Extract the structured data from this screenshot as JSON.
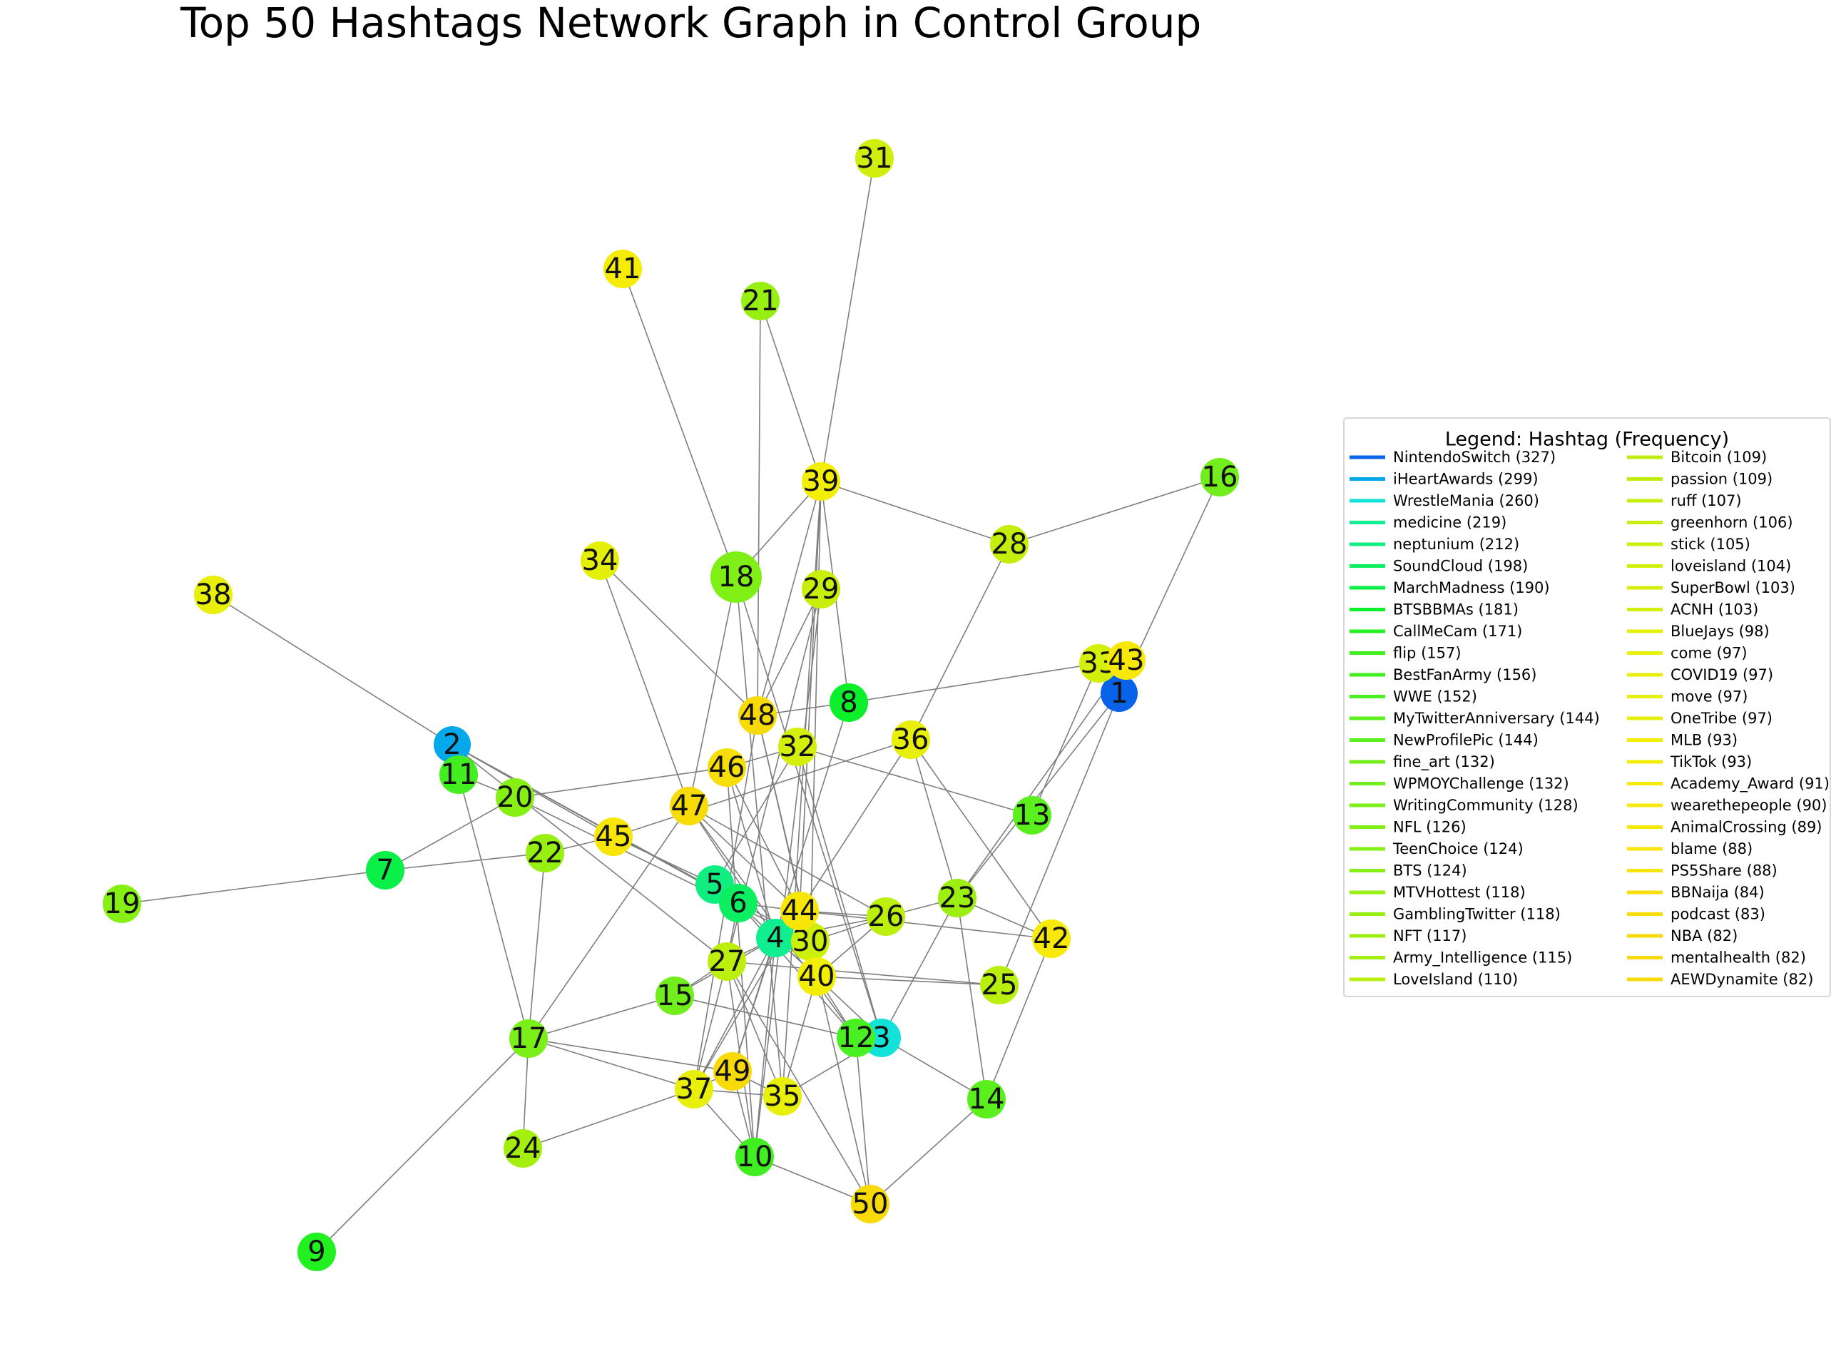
{
  "title": "Top 50 Hashtags Network Graph in Control Group",
  "legend": {
    "title": "Legend: Hashtag (Frequency)",
    "entries": [
      {
        "label": "NintendoSwitch (327)",
        "color": "#0863e8"
      },
      {
        "label": "iHeartAwards (299)",
        "color": "#06a8ec"
      },
      {
        "label": "WrestleMania (260)",
        "color": "#12e2d8"
      },
      {
        "label": "medicine (219)",
        "color": "#10ee90"
      },
      {
        "label": "neptunium (212)",
        "color": "#10ee82"
      },
      {
        "label": "SoundCloud (198)",
        "color": "#0bef60"
      },
      {
        "label": "MarchMadness (190)",
        "color": "#0bf048"
      },
      {
        "label": "BTSBBMAs (181)",
        "color": "#0cf02c"
      },
      {
        "label": "CallMeCam (171)",
        "color": "#22f020"
      },
      {
        "label": "flip (157)",
        "color": "#40ee22"
      },
      {
        "label": "BestFanArmy (156)",
        "color": "#42ee20"
      },
      {
        "label": "WWE (152)",
        "color": "#4af022"
      },
      {
        "label": "MyTwitterAnniversary (144)",
        "color": "#5cef1e"
      },
      {
        "label": "NewProfilePic (144)",
        "color": "#5cef1e"
      },
      {
        "label": "fine_art (132)",
        "color": "#72ee1c"
      },
      {
        "label": "WPMOYChallenge (132)",
        "color": "#72ee1c"
      },
      {
        "label": "WritingCommunity (128)",
        "color": "#7aef18"
      },
      {
        "label": "NFL (126)",
        "color": "#80ef16"
      },
      {
        "label": "TeenChoice (124)",
        "color": "#86ef14"
      },
      {
        "label": "BTS (124)",
        "color": "#86ef14"
      },
      {
        "label": "MTVHottest (118)",
        "color": "#98ef12"
      },
      {
        "label": "GamblingTwitter (118)",
        "color": "#98ef12"
      },
      {
        "label": "NFT (117)",
        "color": "#9cef10"
      },
      {
        "label": "Army_Intelligence (115)",
        "color": "#a4ef10"
      },
      {
        "label": "LoveIsland (110)",
        "color": "#b8ef0e"
      },
      {
        "label": "Bitcoin (109)",
        "color": "#bcef0e"
      },
      {
        "label": "passion (109)",
        "color": "#bcef0e"
      },
      {
        "label": "ruff (107)",
        "color": "#c4ef0e"
      },
      {
        "label": "greenhorn (106)",
        "color": "#c8ef0c"
      },
      {
        "label": "stick (105)",
        "color": "#ccef0c"
      },
      {
        "label": "loveisland (104)",
        "color": "#d0ef0c"
      },
      {
        "label": "SuperBowl (103)",
        "color": "#d4ef0c"
      },
      {
        "label": "ACNH (103)",
        "color": "#d4ef0c"
      },
      {
        "label": "BlueJays (98)",
        "color": "#e4ef0a"
      },
      {
        "label": "come (97)",
        "color": "#e8ef0a"
      },
      {
        "label": "COVID19 (97)",
        "color": "#e8ef0a"
      },
      {
        "label": "move (97)",
        "color": "#e8ef0a"
      },
      {
        "label": "OneTribe (97)",
        "color": "#e8ef0a"
      },
      {
        "label": "MLB (93)",
        "color": "#f2ee08"
      },
      {
        "label": "TikTok (93)",
        "color": "#f2ee08"
      },
      {
        "label": "Academy_Award (91)",
        "color": "#f6ec08"
      },
      {
        "label": "wearethepeople (90)",
        "color": "#f8ea08"
      },
      {
        "label": "AnimalCrossing (89)",
        "color": "#f8e808"
      },
      {
        "label": "blame (88)",
        "color": "#f8e608"
      },
      {
        "label": "PS5Share (88)",
        "color": "#f8e608"
      },
      {
        "label": "BBNaija (84)",
        "color": "#f8de08"
      },
      {
        "label": "podcast (83)",
        "color": "#f8dc08"
      },
      {
        "label": "NBA (82)",
        "color": "#f8da08"
      },
      {
        "label": "mentalhealth (82)",
        "color": "#f8da08"
      },
      {
        "label": "AEWDynamite (82)",
        "color": "#f8da08"
      }
    ]
  },
  "nodes": [
    {
      "id": 1,
      "label": "1",
      "color": "#0863e8"
    },
    {
      "id": 2,
      "label": "2",
      "color": "#06a8ec"
    },
    {
      "id": 3,
      "label": "3",
      "color": "#12e2d8"
    },
    {
      "id": 4,
      "label": "4",
      "color": "#10ee90"
    },
    {
      "id": 5,
      "label": "5",
      "color": "#10ee82"
    },
    {
      "id": 6,
      "label": "6",
      "color": "#0bef60"
    },
    {
      "id": 7,
      "label": "7",
      "color": "#0bf048"
    },
    {
      "id": 8,
      "label": "8",
      "color": "#0cf02c"
    },
    {
      "id": 9,
      "label": "9",
      "color": "#22f020"
    },
    {
      "id": 10,
      "label": "10",
      "color": "#40ee22"
    },
    {
      "id": 11,
      "label": "11",
      "color": "#42ee20"
    },
    {
      "id": 12,
      "label": "12",
      "color": "#4af022"
    },
    {
      "id": 13,
      "label": "13",
      "color": "#5cef1e"
    },
    {
      "id": 14,
      "label": "14",
      "color": "#5cef1e"
    },
    {
      "id": 15,
      "label": "15",
      "color": "#72ee1c"
    },
    {
      "id": 16,
      "label": "16",
      "color": "#72ee1c"
    },
    {
      "id": 17,
      "label": "17",
      "color": "#7aef18"
    },
    {
      "id": 18,
      "label": "18",
      "color": "#80ef16"
    },
    {
      "id": 19,
      "label": "19",
      "color": "#86ef14"
    },
    {
      "id": 20,
      "label": "20",
      "color": "#86ef14"
    },
    {
      "id": 21,
      "label": "21",
      "color": "#98ef12"
    },
    {
      "id": 22,
      "label": "22",
      "color": "#98ef12"
    },
    {
      "id": 23,
      "label": "23",
      "color": "#9cef10"
    },
    {
      "id": 24,
      "label": "24",
      "color": "#a4ef10"
    },
    {
      "id": 25,
      "label": "25",
      "color": "#b8ef0e"
    },
    {
      "id": 26,
      "label": "26",
      "color": "#bcef0e"
    },
    {
      "id": 27,
      "label": "27",
      "color": "#bcef0e"
    },
    {
      "id": 28,
      "label": "28",
      "color": "#c4ef0e"
    },
    {
      "id": 29,
      "label": "29",
      "color": "#c8ef0c"
    },
    {
      "id": 30,
      "label": "30",
      "color": "#ccef0c"
    },
    {
      "id": 31,
      "label": "31",
      "color": "#d0ef0c"
    },
    {
      "id": 32,
      "label": "32",
      "color": "#d4ef0c"
    },
    {
      "id": 33,
      "label": "33",
      "color": "#d4ef0c"
    },
    {
      "id": 34,
      "label": "34",
      "color": "#e4ef0a"
    },
    {
      "id": 35,
      "label": "35",
      "color": "#e8ef0a"
    },
    {
      "id": 36,
      "label": "36",
      "color": "#e8ef0a"
    },
    {
      "id": 37,
      "label": "37",
      "color": "#e8ef0a"
    },
    {
      "id": 38,
      "label": "38",
      "color": "#e8ef0a"
    },
    {
      "id": 39,
      "label": "39",
      "color": "#f2ee08"
    },
    {
      "id": 40,
      "label": "40",
      "color": "#f2ee08"
    },
    {
      "id": 41,
      "label": "41",
      "color": "#f6ec08"
    },
    {
      "id": 42,
      "label": "42",
      "color": "#f8ea08"
    },
    {
      "id": 43,
      "label": "43",
      "color": "#f8e808"
    },
    {
      "id": 44,
      "label": "44",
      "color": "#f8e608"
    },
    {
      "id": 45,
      "label": "45",
      "color": "#f8e608"
    },
    {
      "id": 46,
      "label": "46",
      "color": "#f8de08"
    },
    {
      "id": 47,
      "label": "47",
      "color": "#f8dc08"
    },
    {
      "id": 48,
      "label": "48",
      "color": "#f8da08"
    },
    {
      "id": 49,
      "label": "49",
      "color": "#f8da08"
    },
    {
      "id": 50,
      "label": "50",
      "color": "#f8da08"
    }
  ],
  "edges": [
    [
      2,
      38
    ],
    [
      2,
      45
    ],
    [
      2,
      27
    ],
    [
      2,
      6
    ],
    [
      2,
      30
    ],
    [
      11,
      17
    ],
    [
      11,
      20
    ],
    [
      7,
      19
    ],
    [
      7,
      20
    ],
    [
      7,
      22
    ],
    [
      20,
      46
    ],
    [
      20,
      30
    ],
    [
      22,
      17
    ],
    [
      22,
      45
    ],
    [
      17,
      9
    ],
    [
      17,
      24
    ],
    [
      17,
      15
    ],
    [
      17,
      37
    ],
    [
      17,
      49
    ],
    [
      17,
      47
    ],
    [
      24,
      37
    ],
    [
      45,
      36
    ],
    [
      45,
      5
    ],
    [
      18,
      41
    ],
    [
      18,
      39
    ],
    [
      18,
      47
    ],
    [
      18,
      35
    ],
    [
      18,
      3
    ],
    [
      21,
      39
    ],
    [
      21,
      48
    ],
    [
      31,
      39
    ],
    [
      39,
      28
    ],
    [
      39,
      48
    ],
    [
      39,
      44
    ],
    [
      39,
      35
    ],
    [
      39,
      8
    ],
    [
      39,
      30
    ],
    [
      29,
      48
    ],
    [
      29,
      27
    ],
    [
      29,
      10
    ],
    [
      34,
      48
    ],
    [
      34,
      47
    ],
    [
      48,
      8
    ],
    [
      48,
      30
    ],
    [
      48,
      37
    ],
    [
      48,
      50
    ],
    [
      8,
      33
    ],
    [
      8,
      49
    ],
    [
      33,
      1
    ],
    [
      33,
      13
    ],
    [
      43,
      23
    ],
    [
      16,
      28
    ],
    [
      16,
      1
    ],
    [
      28,
      36
    ],
    [
      1,
      23
    ],
    [
      1,
      25
    ],
    [
      36,
      42
    ],
    [
      36,
      23
    ],
    [
      36,
      44
    ],
    [
      46,
      32
    ],
    [
      46,
      44
    ],
    [
      46,
      4
    ],
    [
      46,
      10
    ],
    [
      32,
      13
    ],
    [
      32,
      5
    ],
    [
      32,
      3
    ],
    [
      47,
      4
    ],
    [
      47,
      44
    ],
    [
      47,
      12
    ],
    [
      47,
      26
    ],
    [
      5,
      6
    ],
    [
      6,
      44
    ],
    [
      6,
      27
    ],
    [
      6,
      12
    ],
    [
      6,
      3
    ],
    [
      44,
      26
    ],
    [
      44,
      42
    ],
    [
      44,
      37
    ],
    [
      26,
      4
    ],
    [
      26,
      23
    ],
    [
      26,
      40
    ],
    [
      23,
      42
    ],
    [
      23,
      14
    ],
    [
      23,
      3
    ],
    [
      4,
      27
    ],
    [
      4,
      15
    ],
    [
      4,
      49
    ],
    [
      4,
      37
    ],
    [
      4,
      10
    ],
    [
      4,
      30
    ],
    [
      4,
      40
    ],
    [
      30,
      40
    ],
    [
      30,
      26
    ],
    [
      27,
      25
    ],
    [
      27,
      15
    ],
    [
      27,
      35
    ],
    [
      27,
      37
    ],
    [
      27,
      10
    ],
    [
      27,
      50
    ],
    [
      40,
      35
    ],
    [
      40,
      12
    ],
    [
      40,
      25
    ],
    [
      15,
      12
    ],
    [
      49,
      35
    ],
    [
      49,
      10
    ],
    [
      35,
      3
    ],
    [
      12,
      50
    ],
    [
      14,
      50
    ],
    [
      14,
      42
    ],
    [
      14,
      3
    ],
    [
      37,
      10
    ],
    [
      37,
      49
    ],
    [
      10,
      50
    ],
    [
      37,
      35
    ]
  ]
}
